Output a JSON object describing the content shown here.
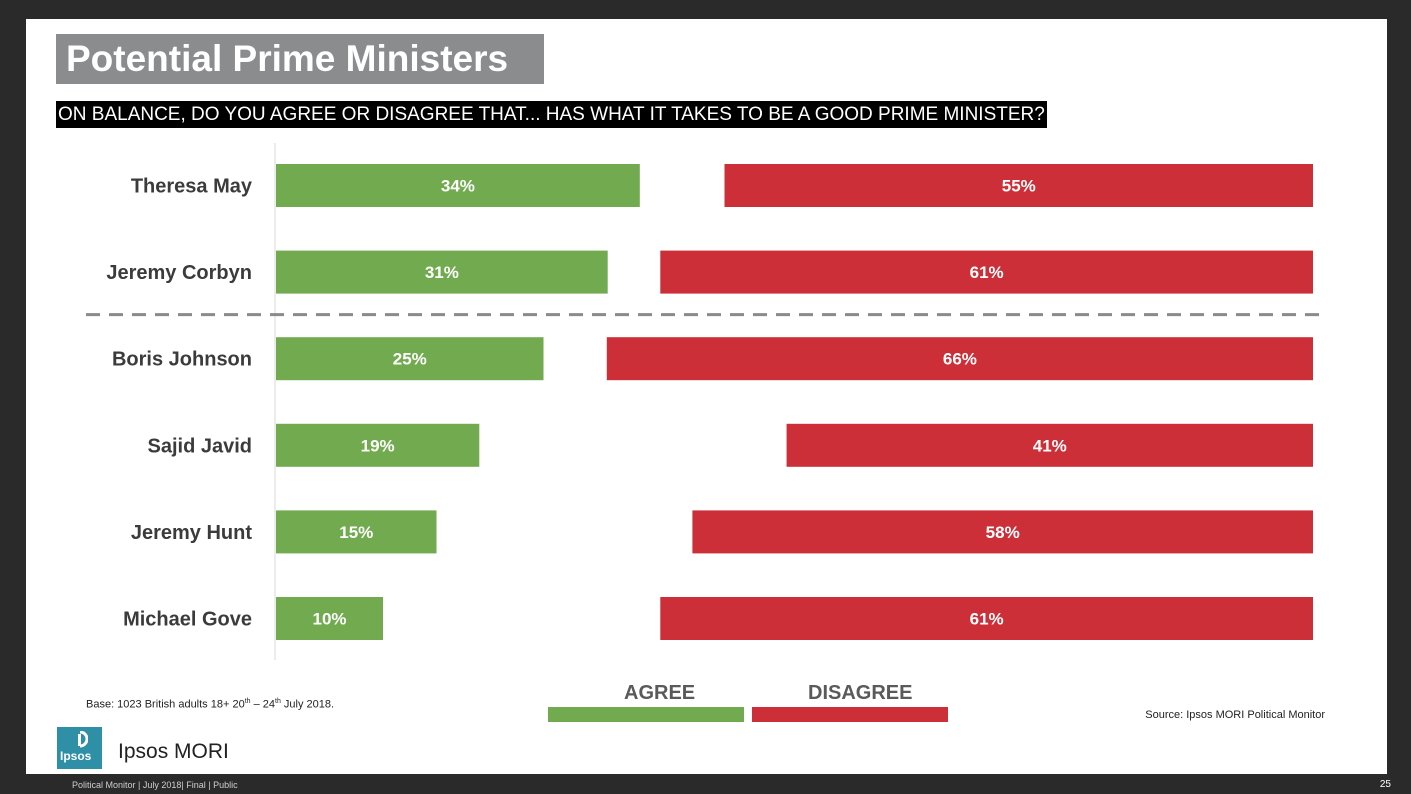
{
  "title": "Potential Prime Ministers",
  "subtitle": "ON BALANCE, DO YOU AGREE OR DISAGREE THAT... HAS WHAT IT TAKES TO BE A GOOD PRIME MINISTER?",
  "chart_data": {
    "type": "bar",
    "orientation": "horizontal",
    "categories": [
      "Theresa May",
      "Jeremy Corbyn",
      "Boris Johnson",
      "Sajid Javid",
      "Jeremy Hunt",
      "Michael Gove"
    ],
    "series": [
      {
        "name": "AGREE",
        "values": [
          34,
          31,
          25,
          19,
          15,
          10
        ],
        "labels": [
          "34%",
          "31%",
          "25%",
          "19%",
          "15%",
          "10%"
        ],
        "color": "#72aa4f"
      },
      {
        "name": "DISAGREE",
        "values": [
          55,
          61,
          66,
          41,
          58,
          61
        ],
        "labels": [
          "55%",
          "61%",
          "66%",
          "41%",
          "58%",
          "61%"
        ],
        "color": "#cc2f37"
      }
    ],
    "legend": "bottom-center",
    "separator_after_category": "Jeremy Corbyn"
  },
  "legend": {
    "agree": "AGREE",
    "disagree": "DISAGREE"
  },
  "notes": {
    "base_prefix": "Base:  1023 British adults 18+ 20",
    "base_sup1": "th",
    "base_mid": " – 24",
    "base_sup2": "th",
    "base_suffix": " July 2018.",
    "source": "Source: Ipsos MORI Political Monitor"
  },
  "logo_text": "Ipsos",
  "brand": "Ipsos MORI",
  "footer": "Political Monitor | July 2018| Final | Public",
  "page_number": "25"
}
